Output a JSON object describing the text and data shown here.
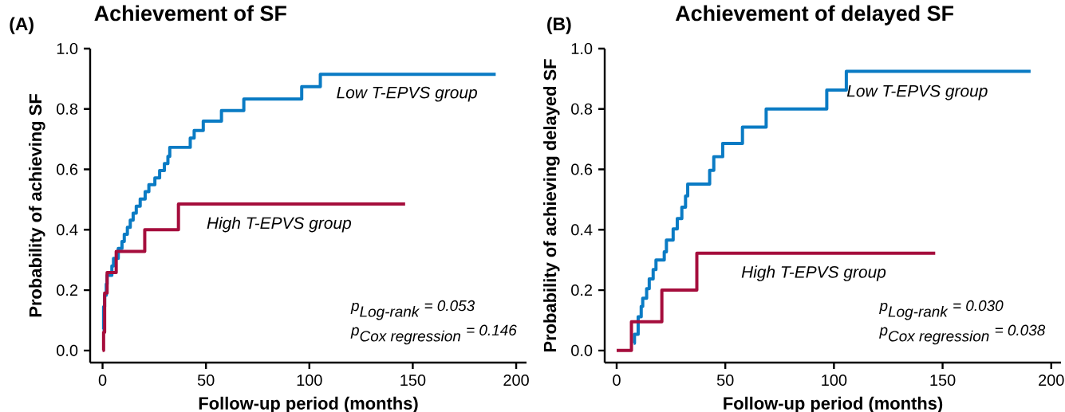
{
  "chart_data": [
    {
      "type": "step",
      "title": "Achievement of SF",
      "xlabel": "Follow-up period (months)",
      "ylabel": "Probability of achieving SF",
      "xlim": [
        -6,
        205
      ],
      "ylim": [
        -0.04,
        1.0
      ],
      "xticks": [
        0,
        50,
        100,
        150,
        200
      ],
      "yticks": [
        {
          "value": 0,
          "label": "0.0"
        },
        {
          "value": 0.2,
          "label": "0.2"
        },
        {
          "value": 0.4,
          "label": "0.4"
        },
        {
          "value": 0.6,
          "label": "0.6"
        },
        {
          "value": 0.8,
          "label": "0.8"
        },
        {
          "value": 1.0,
          "label": "1.0"
        }
      ],
      "series": [
        {
          "name": "Low T-EPVS group",
          "color": "#0a7bc4",
          "x": [
            0,
            0.5,
            1,
            1.8,
            2.2,
            4.5,
            5.3,
            7.6,
            9.4,
            10.5,
            12,
            13.4,
            14.8,
            16.3,
            18.2,
            20.6,
            22.4,
            25.3,
            27.6,
            29.9,
            31.6,
            32.5,
            42.4,
            44.3,
            48.7,
            57.5,
            68.3,
            96.3,
            105.3,
            190.1
          ],
          "values": [
            0.07,
            0.145,
            0.183,
            0.22,
            0.249,
            0.28,
            0.305,
            0.338,
            0.361,
            0.385,
            0.408,
            0.432,
            0.455,
            0.478,
            0.502,
            0.526,
            0.549,
            0.572,
            0.596,
            0.619,
            0.643,
            0.673,
            0.704,
            0.729,
            0.76,
            0.795,
            0.833,
            0.874,
            0.915,
            0.915
          ]
        },
        {
          "name": "High T-EPVS group",
          "color": "#a50d3c",
          "x": [
            0,
            0.5,
            1,
            2.2,
            6.6,
            20.4,
            36.7,
            146.3
          ],
          "values": [
            0,
            0.06,
            0.19,
            0.258,
            0.328,
            0.4,
            0.485,
            0.485
          ]
        }
      ],
      "annotations": [
        "(A)",
        "\\textit{p}_{\\textit{Log-rank}}\\textit{ = 0.053}",
        "\\textit{p}_{\\textit{Cox regression}}\\textit{ = 0.146}"
      ]
    },
    {
      "type": "step",
      "title": "Achievement of delayed SF",
      "xlabel": "Follow-up period (months)",
      "ylabel": "Probability of achieving delayed SF",
      "xlim": [
        -5.5,
        204.5
      ],
      "ylim": [
        -0.04,
        1.0
      ],
      "xticks": [
        0,
        50,
        100,
        150,
        200
      ],
      "yticks": [
        {
          "value": 0,
          "label": "0.0"
        },
        {
          "value": 0.2,
          "label": "0.2"
        },
        {
          "value": 0.4,
          "label": "0.4"
        },
        {
          "value": 0.6,
          "label": "0.6"
        },
        {
          "value": 0.8,
          "label": "0.8"
        },
        {
          "value": 1.0,
          "label": "1.0"
        }
      ],
      "series": [
        {
          "name": "Low T-EPVS group",
          "color": "#0a7bc4",
          "x": [
            7.9,
            8.2,
            9.9,
            11.3,
            12.0,
            13.8,
            15.0,
            16.8,
            18.1,
            21.9,
            22.9,
            26.0,
            27.9,
            30.0,
            31.7,
            32.7,
            42.8,
            44.7,
            48.8,
            57.9,
            68.8,
            96.7,
            105.7,
            190.5
          ],
          "values": [
            0.024,
            0.054,
            0.112,
            0.146,
            0.173,
            0.205,
            0.237,
            0.268,
            0.3,
            0.327,
            0.366,
            0.403,
            0.437,
            0.475,
            0.512,
            0.551,
            0.597,
            0.642,
            0.686,
            0.74,
            0.8,
            0.863,
            0.925,
            0.925
          ]
        },
        {
          "name": "High T-EPVS group",
          "color": "#a50d3c",
          "x": [
            0,
            6.8,
            20.8,
            36.9,
            146.6
          ],
          "values": [
            0,
            0.095,
            0.2,
            0.322,
            0.322
          ]
        }
      ],
      "annotations": [
        "(B)",
        "\\textit{p}_{\\textit{Log-rank}}\\textit{ = 0.030}",
        "\\textit{p}_{\\textit{Cox regression}}\\textit{ = 0.038}"
      ]
    }
  ]
}
